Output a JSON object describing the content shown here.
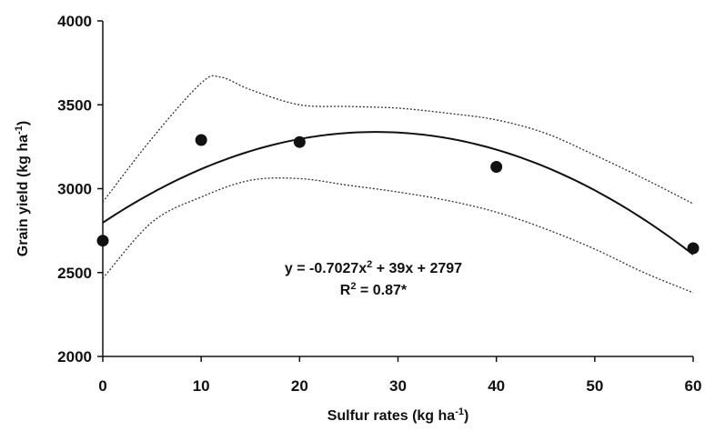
{
  "chart_data": {
    "type": "scatter",
    "xlabel": "Sulfur rates (kg ha",
    "xlabel_sup": "-1",
    "xlabel_suffix": ")",
    "ylabel": "Grain yield  (kg ha",
    "ylabel_sup": "-1",
    "ylabel_suffix": ")",
    "xlim": [
      0,
      60
    ],
    "ylim": [
      2000,
      4000
    ],
    "x_ticks": [
      0,
      10,
      20,
      30,
      40,
      50,
      60
    ],
    "y_ticks": [
      2000,
      2500,
      3000,
      3500,
      4000
    ],
    "grid": false,
    "legend": "none",
    "series": [
      {
        "type": "scatter",
        "x": [
          0,
          10,
          20,
          40,
          60
        ],
        "y": [
          2690,
          3290,
          3278,
          3130,
          2645
        ]
      },
      {
        "type": "line",
        "style": "solid",
        "equation": {
          "a": -0.7027,
          "b": 39,
          "c": 2797
        }
      },
      {
        "type": "line",
        "style": "dotted",
        "x": [
          0,
          5,
          10,
          12,
          15,
          20,
          25,
          30,
          35,
          40,
          45,
          50,
          55,
          60
        ],
        "y": [
          2920,
          3300,
          3630,
          3665,
          3590,
          3500,
          3490,
          3480,
          3450,
          3410,
          3330,
          3200,
          3060,
          2910
        ]
      },
      {
        "type": "line",
        "style": "dotted",
        "x": [
          0,
          5,
          10,
          15,
          20,
          25,
          30,
          35,
          40,
          45,
          50,
          55,
          60
        ],
        "y": [
          2465,
          2800,
          2950,
          3050,
          3060,
          3020,
          2980,
          2930,
          2860,
          2760,
          2640,
          2500,
          2380
        ]
      }
    ],
    "annotations": [
      {
        "text_main": "y = -0.7027x",
        "text_sup": "2",
        "text_rest": " + 39x + 2797",
        "x": 27.5,
        "y": 2530
      },
      {
        "text_main": "R",
        "text_sup": "2",
        "text_rest": " = 0.87*",
        "x": 27.5,
        "y": 2400
      }
    ]
  }
}
